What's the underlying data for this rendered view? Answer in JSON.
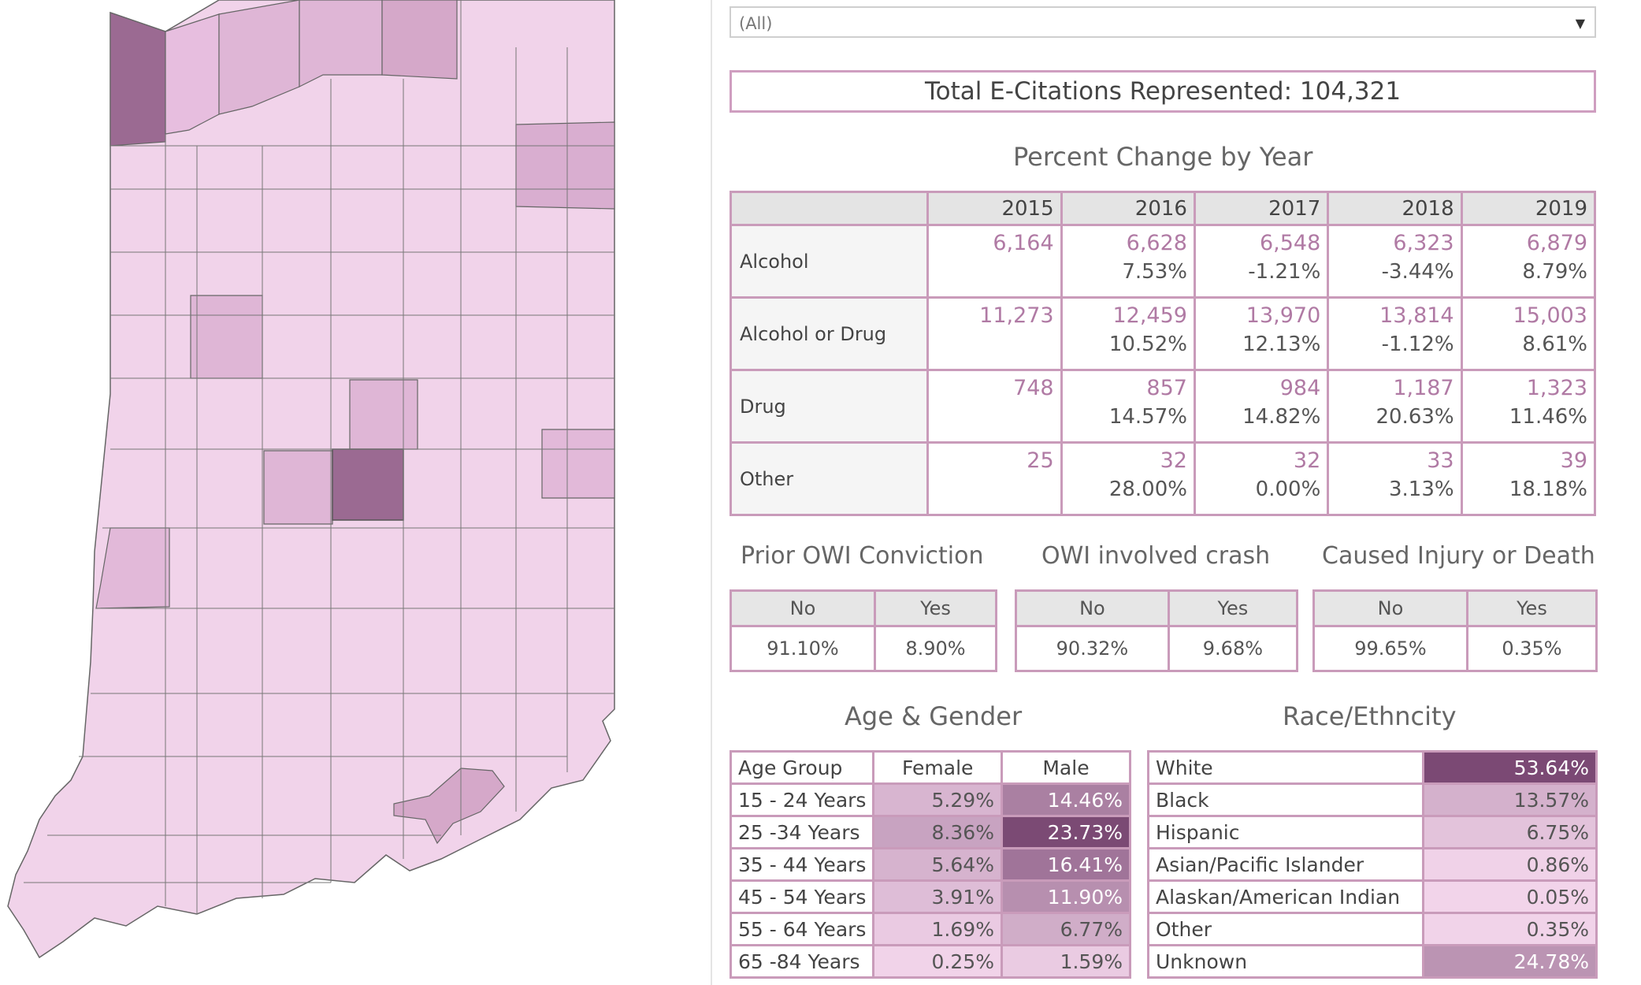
{
  "filter": {
    "value": "(All)",
    "caret_icon": "chevron-down-icon"
  },
  "total": {
    "text": "Total E-Citations Represented: 104,321"
  },
  "percent_change": {
    "title": "Percent Change by Year",
    "years": [
      "2015",
      "2016",
      "2017",
      "2018",
      "2019"
    ],
    "rows": [
      {
        "label": "Alcohol",
        "counts": [
          "6,164",
          "6,628",
          "6,548",
          "6,323",
          "6,879"
        ],
        "pcts": [
          "",
          "7.53%",
          "-1.21%",
          "-3.44%",
          "8.79%"
        ]
      },
      {
        "label": "Alcohol or Drug",
        "counts": [
          "11,273",
          "12,459",
          "13,970",
          "13,814",
          "15,003"
        ],
        "pcts": [
          "",
          "10.52%",
          "12.13%",
          "-1.12%",
          "8.61%"
        ]
      },
      {
        "label": "Drug",
        "counts": [
          "748",
          "857",
          "984",
          "1,187",
          "1,323"
        ],
        "pcts": [
          "",
          "14.57%",
          "14.82%",
          "20.63%",
          "11.46%"
        ]
      },
      {
        "label": "Other",
        "counts": [
          "25",
          "32",
          "32",
          "33",
          "39"
        ],
        "pcts": [
          "",
          "28.00%",
          "0.00%",
          "3.13%",
          "18.18%"
        ]
      }
    ]
  },
  "prior_owi": {
    "title": "Prior OWI Conviction",
    "no_label": "No",
    "yes_label": "Yes",
    "no_value": "91.10%",
    "yes_value": "8.90%"
  },
  "owi_crash": {
    "title": "OWI involved crash",
    "no_label": "No",
    "yes_label": "Yes",
    "no_value": "90.32%",
    "yes_value": "9.68%"
  },
  "injury": {
    "title": "Caused Injury or Death",
    "no_label": "No",
    "yes_label": "Yes",
    "no_value": "99.65%",
    "yes_value": "0.35%"
  },
  "age_gender": {
    "title": "Age & Gender",
    "headers": {
      "group": "Age Group",
      "female": "Female",
      "male": "Male"
    },
    "rows": [
      {
        "group": "15 - 24 Years",
        "female": "5.29%",
        "male": "14.46%"
      },
      {
        "group": "25 -34 Years",
        "female": "8.36%",
        "male": "23.73%"
      },
      {
        "group": "35 - 44 Years",
        "female": "5.64%",
        "male": "16.41%"
      },
      {
        "group": "45 - 54 Years",
        "female": "3.91%",
        "male": "11.90%"
      },
      {
        "group": "55 - 64 Years",
        "female": "1.69%",
        "male": "6.77%"
      },
      {
        "group": "65 -84 Years",
        "female": "0.25%",
        "male": "1.59%"
      }
    ]
  },
  "race": {
    "title": "Race/Ethncity",
    "rows": [
      {
        "label": "White",
        "value": "53.64%"
      },
      {
        "label": "Black",
        "value": "13.57%"
      },
      {
        "label": "Hispanic",
        "value": "6.75%"
      },
      {
        "label": "Asian/Pacific Islander",
        "value": "0.86%"
      },
      {
        "label": "Alaskan/American Indian",
        "value": "0.05%"
      },
      {
        "label": "Other",
        "value": "0.35%"
      },
      {
        "label": "Unknown",
        "value": "24.78%"
      }
    ]
  },
  "colors": {
    "base": "#f1d3ea",
    "light": "#d9aed0",
    "medium": "#c99ac0",
    "dark": "#9b6a92",
    "darkest": "#7c4a74",
    "border": "#c99bba"
  }
}
